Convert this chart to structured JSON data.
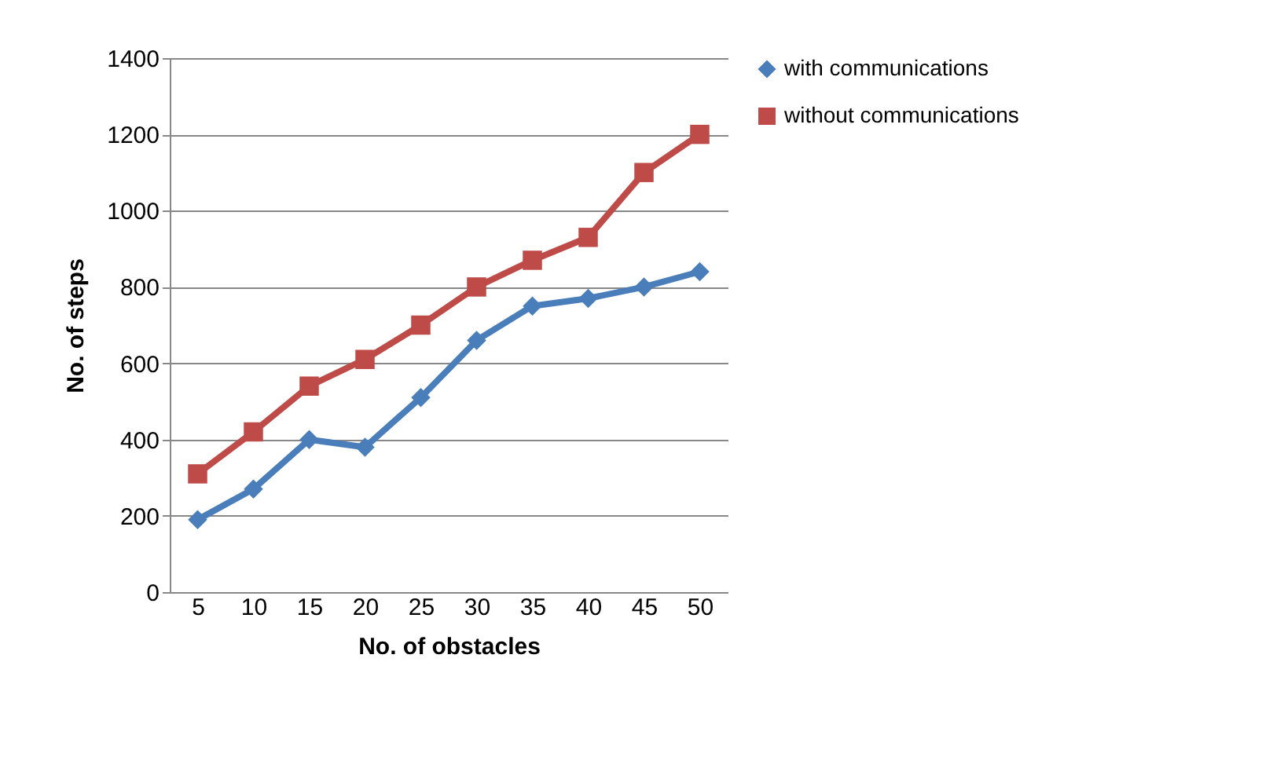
{
  "chart_data": {
    "type": "line",
    "xlabel": "No. of obstacles",
    "ylabel": "No. of steps",
    "categories": [
      "5",
      "10",
      "15",
      "20",
      "25",
      "30",
      "35",
      "40",
      "45",
      "50"
    ],
    "series": [
      {
        "name": "with communications",
        "color": "#4a7ebb",
        "marker": "diamond",
        "values": [
          190,
          270,
          400,
          380,
          510,
          660,
          750,
          770,
          800,
          840
        ]
      },
      {
        "name": "without communications",
        "color": "#be4b48",
        "marker": "square",
        "values": [
          310,
          420,
          540,
          610,
          700,
          800,
          870,
          930,
          1100,
          1200
        ]
      }
    ],
    "ylim": [
      0,
      1400
    ],
    "yticks": [
      0,
      200,
      400,
      600,
      800,
      1000,
      1200,
      1400
    ],
    "grid": "y",
    "legend": "right"
  }
}
